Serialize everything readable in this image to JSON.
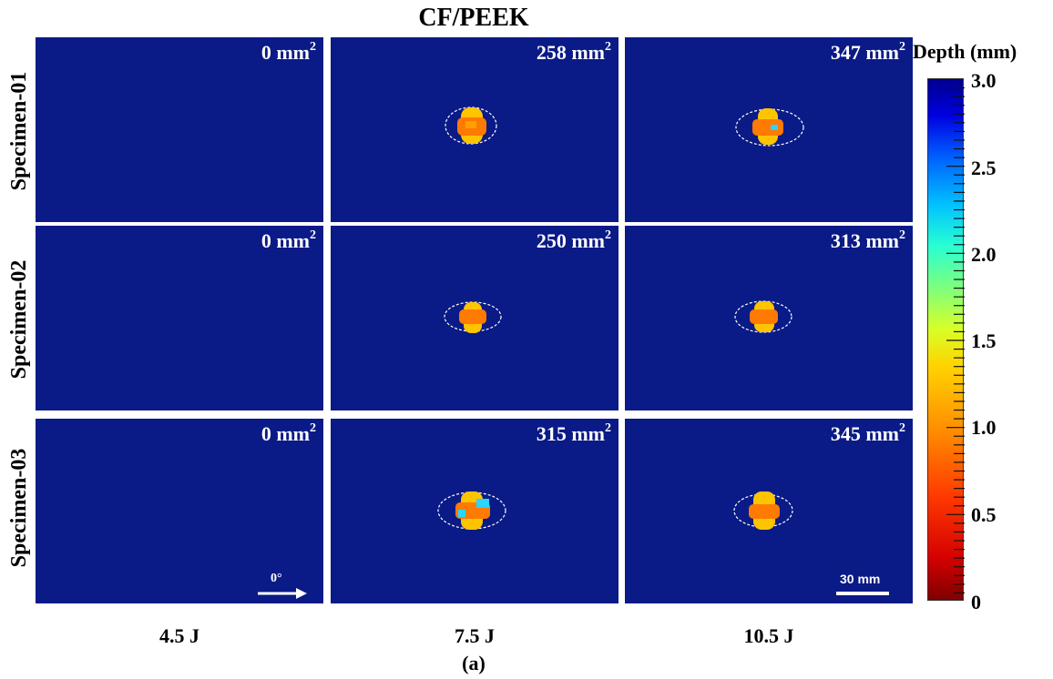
{
  "figure": {
    "title": "CF/PEEK",
    "caption": "(a)",
    "rows": [
      "Specimen-01",
      "Specimen-02",
      "Specimen-03"
    ],
    "columns": [
      "4.5 J",
      "7.5 J",
      "10.5 J"
    ],
    "panels": [
      [
        "0 mm",
        "258 mm",
        "347 mm"
      ],
      [
        "0 mm",
        "250 mm",
        "313 mm"
      ],
      [
        "0 mm",
        "315 mm",
        "345 mm"
      ]
    ],
    "area_superscript": "2",
    "direction_marker": "0°",
    "scale_bar": "30 mm"
  },
  "colorbar": {
    "title": "Depth (mm)",
    "ticks": [
      "3.0",
      "2.5",
      "2.0",
      "1.5",
      "1.0",
      "0.5",
      "0"
    ],
    "min": 0,
    "max": 3.0
  },
  "colors": {
    "panel_background": "#0a1a86",
    "damage_core": "#ff7a00",
    "damage_edge": "#ffc400",
    "damage_accent": "#2ad6ff",
    "outline": "#ffffff"
  }
}
